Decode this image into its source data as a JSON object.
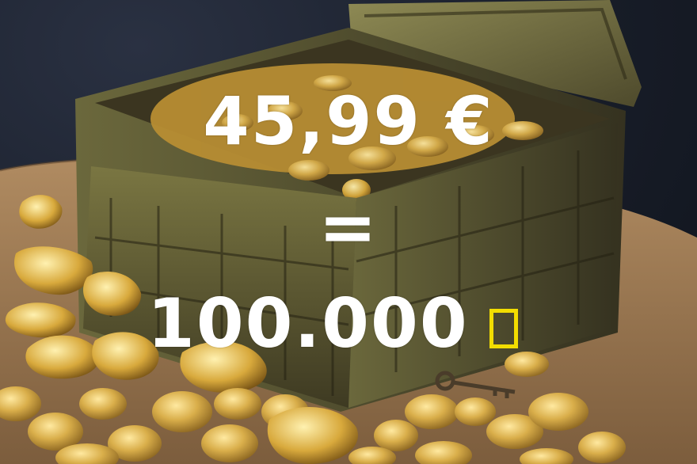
{
  "image": {
    "description_icon": "treasure-chest-with-gold-coins",
    "colors": {
      "text": "#ffffff",
      "missing_glyph_outline": "#f2dd00",
      "gold": "#c9a23a",
      "chest_bronze": "#6b6a3a",
      "background_dark": "#1b2230",
      "wood": "#9c7a52"
    }
  },
  "overlay": {
    "price": "45,99 €",
    "equals": "=",
    "amount": "100.000"
  }
}
